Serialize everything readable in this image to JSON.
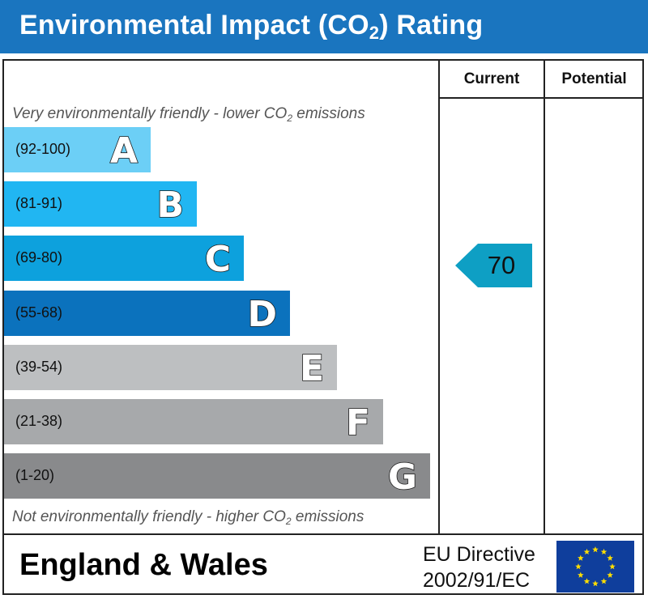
{
  "title": {
    "prefix": "Environmental Impact (CO",
    "sub": "2",
    "suffix": ") Rating"
  },
  "columns": {
    "current": "Current",
    "potential": "Potential"
  },
  "top_caption": {
    "prefix": "Very environmentally friendly - lower CO",
    "sub": "2",
    "suffix": " emissions"
  },
  "bottom_caption": {
    "prefix": "Not environmentally friendly - higher CO",
    "sub": "2",
    "suffix": " emissions"
  },
  "bands": [
    {
      "letter": "A",
      "range": "(92-100)",
      "color": "#6ccff6"
    },
    {
      "letter": "B",
      "range": "(81-91)",
      "color": "#21b6f2"
    },
    {
      "letter": "C",
      "range": "(69-80)",
      "color": "#0da1dd"
    },
    {
      "letter": "D",
      "range": "(55-68)",
      "color": "#0b72bd"
    },
    {
      "letter": "E",
      "range": "(39-54)",
      "color": "#bdbfc1"
    },
    {
      "letter": "F",
      "range": "(21-38)",
      "color": "#a7a9ab"
    },
    {
      "letter": "G",
      "range": "(1-20)",
      "color": "#898a8c"
    }
  ],
  "current_rating": {
    "value": "70",
    "color": "#0e9fc4"
  },
  "footer": {
    "country": "England & Wales",
    "directive_line1": "EU Directive",
    "directive_line2": "2002/91/EC"
  },
  "colors": {
    "title_bar": "#1a75bf",
    "eu_flag": "#0f3e9c",
    "eu_stars": "#ffde00"
  }
}
